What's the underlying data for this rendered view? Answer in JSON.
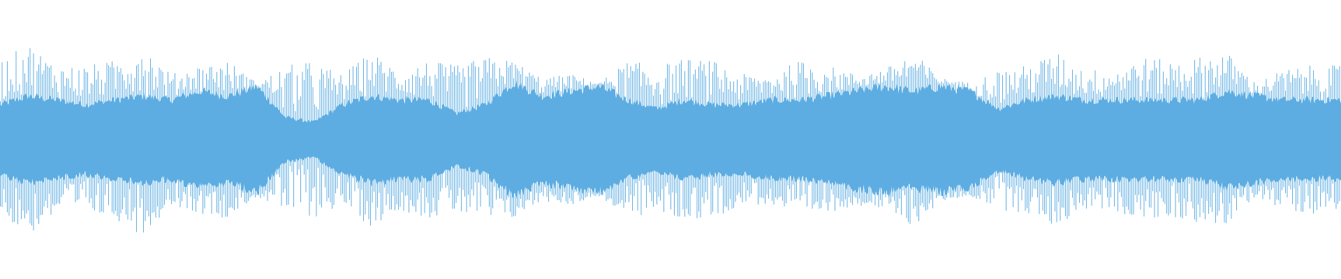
{
  "waveform": {
    "color": "#5dade2",
    "background": "#ffffff",
    "peak_envelope": [
      0.82,
      1.0,
      0.77,
      0.77,
      0.82,
      1.0,
      0.68,
      0.77,
      0.82,
      0.59,
      0.77,
      0.82,
      0.68,
      0.91,
      0.73,
      0.82,
      0.77,
      0.86,
      0.82,
      0.64,
      0.68,
      0.59,
      0.82,
      0.77,
      0.84,
      0.82,
      0.68,
      0.68,
      0.82,
      0.77,
      0.68,
      0.73,
      0.91,
      0.64,
      0.59,
      0.73,
      0.77,
      0.91,
      0.73,
      0.73,
      0.86,
      0.82,
      0.86,
      0.91,
      0.59,
      0.73,
      0.77,
      0.77
    ],
    "core_envelope": [
      0.36,
      0.45,
      0.41,
      0.36,
      0.41,
      0.45,
      0.41,
      0.5,
      0.45,
      0.55,
      0.23,
      0.18,
      0.36,
      0.45,
      0.41,
      0.41,
      0.27,
      0.36,
      0.59,
      0.45,
      0.5,
      0.55,
      0.41,
      0.32,
      0.41,
      0.36,
      0.36,
      0.41,
      0.41,
      0.45,
      0.5,
      0.55,
      0.5,
      0.55,
      0.5,
      0.32,
      0.41,
      0.45,
      0.41,
      0.41,
      0.41,
      0.41,
      0.41,
      0.5,
      0.45,
      0.41,
      0.41,
      0.41
    ]
  }
}
